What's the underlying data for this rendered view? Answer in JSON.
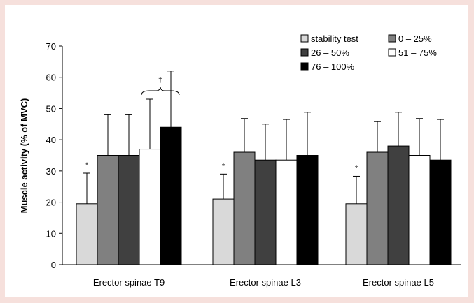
{
  "chart_data": {
    "type": "bar",
    "categories": [
      "Erector spinae T9",
      "Erector spinae L3",
      "Erector spinae L5"
    ],
    "series": [
      {
        "name": "stability test",
        "color": "#d9d9d9",
        "values": [
          19.5,
          21,
          19.5
        ],
        "errors": [
          9.8,
          8,
          8.8
        ]
      },
      {
        "name": "0 – 25%",
        "color": "#808080",
        "values": [
          35,
          36,
          36
        ],
        "errors": [
          13,
          10.8,
          9.8
        ]
      },
      {
        "name": "26 – 50%",
        "color": "#404040",
        "values": [
          35,
          33.5,
          38
        ],
        "errors": [
          13,
          11.5,
          10.8
        ]
      },
      {
        "name": "51 – 75%",
        "color": "#ffffff",
        "values": [
          37,
          33.5,
          35
        ],
        "errors": [
          16,
          13,
          11.8
        ]
      },
      {
        "name": "76 – 100%",
        "color": "#000000",
        "values": [
          44,
          35,
          33.5
        ],
        "errors": [
          18,
          13.8,
          13
        ]
      }
    ],
    "ylabel": "Muscle activity (% of MVC)",
    "xlabel": "",
    "ylim": [
      0,
      70
    ],
    "yticks": [
      0,
      10,
      20,
      30,
      40,
      50,
      60,
      70
    ],
    "grid": false,
    "legend_position": "top-right",
    "annotations": {
      "star": "*",
      "dagger": "†"
    }
  }
}
